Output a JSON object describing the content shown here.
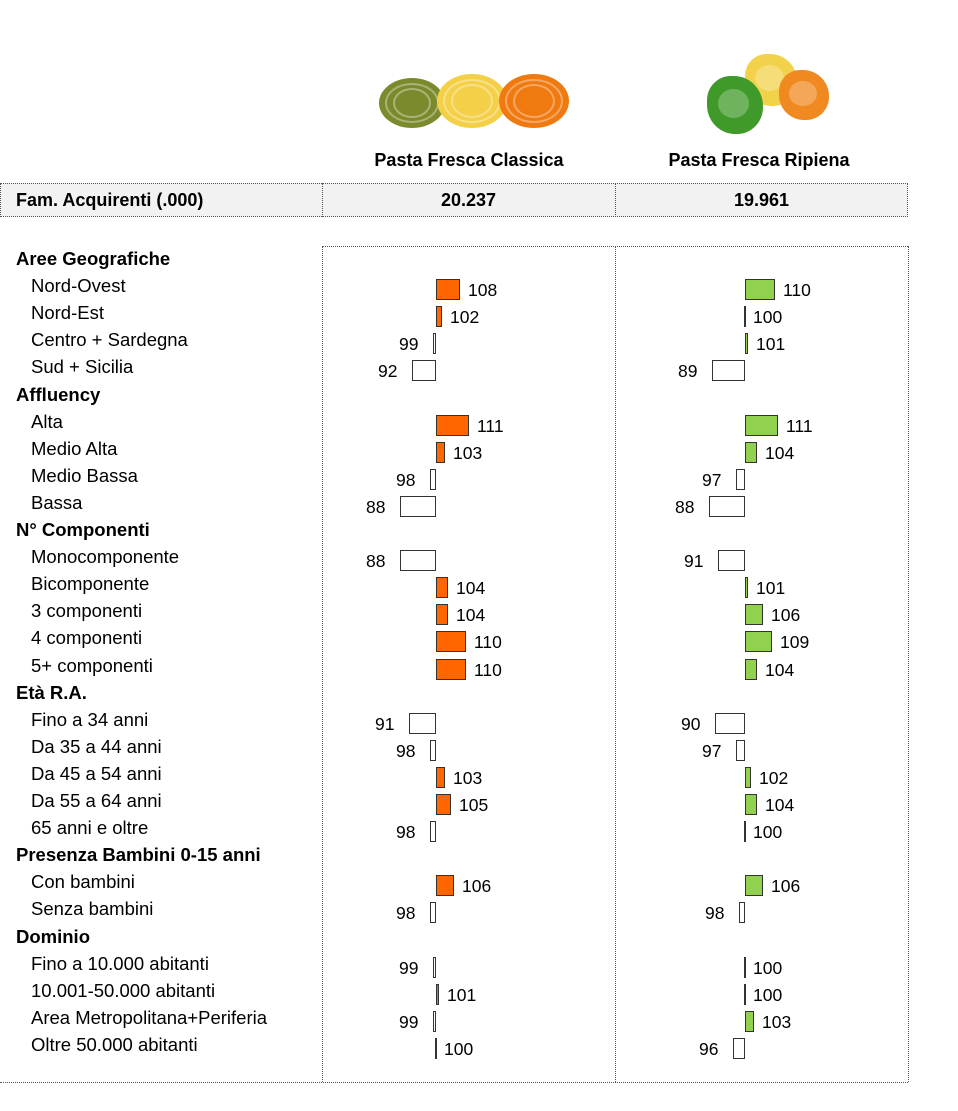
{
  "products": [
    {
      "name": "Pasta Fresca Classica",
      "buyers": "20.237",
      "image_icon": "tagliatelle-nests-icon"
    },
    {
      "name": "Pasta Fresca Ripiena",
      "buyers": "19.961",
      "image_icon": "tortellini-icon"
    }
  ],
  "summary_label": "Fam. Acquirenti (.000)",
  "colors": {
    "classica": "#ff6600",
    "ripiena": "#92d050",
    "below": "#ffffff"
  },
  "chart_data": {
    "type": "bar",
    "title": "",
    "baseline": 100,
    "note": "Index vs. total (100). Bars extend right of baseline when >100 (filled), left when <100 (empty).",
    "groups": [
      {
        "name": "Aree Geografiche",
        "categories": [
          "Nord-Ovest",
          "Nord-Est",
          "Centro + Sardegna",
          "Sud + Sicilia"
        ]
      },
      {
        "name": "Affluency",
        "categories": [
          "Alta",
          "Medio Alta",
          "Medio Bassa",
          "Bassa"
        ]
      },
      {
        "name": "N° Componenti",
        "categories": [
          "Monocomponente",
          "Bicomponente",
          "3 componenti",
          "4 componenti",
          "5+ componenti"
        ]
      },
      {
        "name": "Età R.A.",
        "categories": [
          "Fino a 34 anni",
          "Da 35 a 44 anni",
          "Da 45 a 54 anni",
          "Da 55 a 64 anni",
          "65 anni e oltre"
        ]
      },
      {
        "name": "Presenza Bambini 0-15 anni",
        "categories": [
          "Con bambini",
          "Senza bambini"
        ]
      },
      {
        "name": "Dominio",
        "categories": [
          "Fino a 10.000 abitanti",
          "10.001-50.000 abitanti",
          "Area Metropolitana+Periferia",
          "Oltre 50.000 abitanti"
        ]
      }
    ],
    "series": [
      {
        "name": "Pasta Fresca Classica",
        "values": [
          108,
          102,
          99,
          92,
          111,
          103,
          98,
          88,
          88,
          104,
          104,
          110,
          110,
          91,
          98,
          103,
          105,
          98,
          106,
          98,
          99,
          101,
          99,
          100
        ]
      },
      {
        "name": "Pasta Fresca Ripiena",
        "values": [
          110,
          100,
          101,
          89,
          111,
          104,
          97,
          88,
          91,
          101,
          106,
          109,
          104,
          90,
          97,
          102,
          104,
          100,
          106,
          98,
          100,
          100,
          103,
          96
        ]
      }
    ]
  }
}
